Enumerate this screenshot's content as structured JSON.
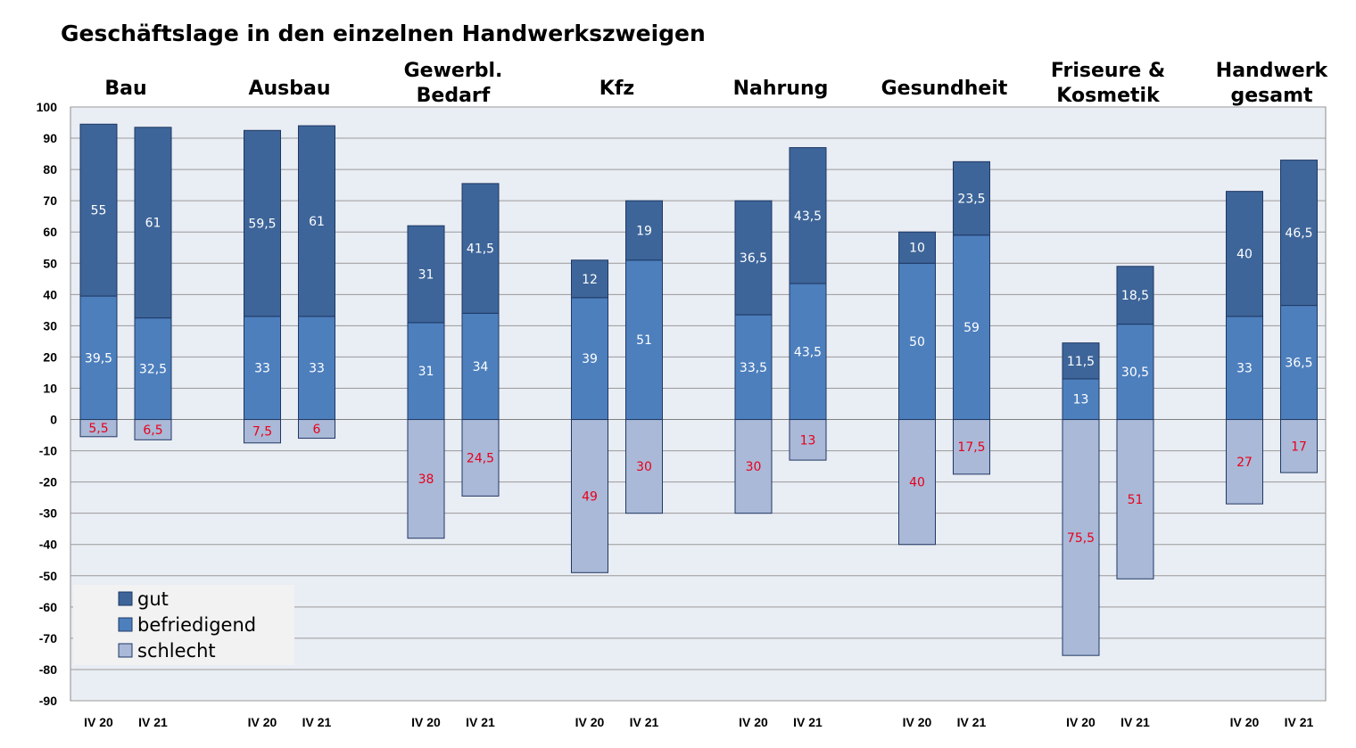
{
  "title": "Geschäftslage in den einzelnen Handwerkszweigen",
  "colors": {
    "plot_bg": "#e9edf4",
    "gut": "#3d6599",
    "befriedigend": "#4d7fbd",
    "schlecht": "#aab9d7",
    "bar_edge": "#1f3864",
    "label_light": "#ffffff",
    "label_red": "#e8001c",
    "legend_bg": "#f2f2f2"
  },
  "chart_data": {
    "type": "bar",
    "stacked": true,
    "ylim": [
      -90,
      100
    ],
    "yticks": [
      100,
      90,
      80,
      70,
      60,
      50,
      40,
      30,
      20,
      10,
      0,
      -10,
      -20,
      -30,
      -40,
      -50,
      -60,
      -70,
      -80,
      -90
    ],
    "grid": true,
    "legend_position": "bottom-left",
    "groups": [
      {
        "label_lines": [
          "Bau"
        ],
        "bars": [
          {
            "x": "IV 20",
            "gut": 55,
            "befriedigend": 39.5,
            "schlecht": 5.5,
            "labels": {
              "gut": "55",
              "befriedigend": "39,5",
              "schlecht": "5,5"
            }
          },
          {
            "x": "IV 21",
            "gut": 61,
            "befriedigend": 32.5,
            "schlecht": 6.5,
            "labels": {
              "gut": "61",
              "befriedigend": "32,5",
              "schlecht": "6,5"
            }
          }
        ]
      },
      {
        "label_lines": [
          "Ausbau"
        ],
        "bars": [
          {
            "x": "IV 20",
            "gut": 59.5,
            "befriedigend": 33,
            "schlecht": 7.5,
            "labels": {
              "gut": "59,5",
              "befriedigend": "33",
              "schlecht": "7,5"
            }
          },
          {
            "x": "IV 21",
            "gut": 61,
            "befriedigend": 33,
            "schlecht": 6,
            "labels": {
              "gut": "61",
              "befriedigend": "33",
              "schlecht": "6"
            }
          }
        ]
      },
      {
        "label_lines": [
          "Gewerbl.",
          "Bedarf"
        ],
        "bars": [
          {
            "x": "IV 20",
            "gut": 31,
            "befriedigend": 31,
            "schlecht": 38,
            "labels": {
              "gut": "31",
              "befriedigend": "31",
              "schlecht": "38"
            }
          },
          {
            "x": "IV 21",
            "gut": 41.5,
            "befriedigend": 34,
            "schlecht": 24.5,
            "labels": {
              "gut": "41,5",
              "befriedigend": "34",
              "schlecht": "24,5"
            }
          }
        ]
      },
      {
        "label_lines": [
          "Kfz"
        ],
        "bars": [
          {
            "x": "IV 20",
            "gut": 12,
            "befriedigend": 39,
            "schlecht": 49,
            "labels": {
              "gut": "12",
              "befriedigend": "39",
              "schlecht": "49"
            }
          },
          {
            "x": "IV 21",
            "gut": 19,
            "befriedigend": 51,
            "schlecht": 30,
            "labels": {
              "gut": "19",
              "befriedigend": "51",
              "schlecht": "30"
            }
          }
        ]
      },
      {
        "label_lines": [
          "Nahrung"
        ],
        "bars": [
          {
            "x": "IV 20",
            "gut": 36.5,
            "befriedigend": 33.5,
            "schlecht": 30,
            "labels": {
              "gut": "36,5",
              "befriedigend": "33,5",
              "schlecht": "30"
            }
          },
          {
            "x": "IV 21",
            "gut": 43.5,
            "befriedigend": 43.5,
            "schlecht": 13,
            "labels": {
              "gut": "43,5",
              "befriedigend": "43,5",
              "schlecht": "13"
            }
          }
        ]
      },
      {
        "label_lines": [
          "Gesundheit"
        ],
        "bars": [
          {
            "x": "IV 20",
            "gut": 10,
            "befriedigend": 50,
            "schlecht": 40,
            "labels": {
              "gut": "10",
              "befriedigend": "50",
              "schlecht": "40"
            }
          },
          {
            "x": "IV 21",
            "gut": 23.5,
            "befriedigend": 59,
            "schlecht": 17.5,
            "labels": {
              "gut": "23,5",
              "befriedigend": "59",
              "schlecht": "17,5"
            }
          }
        ]
      },
      {
        "label_lines": [
          "Friseure &",
          "Kosmetik"
        ],
        "bars": [
          {
            "x": "IV 20",
            "gut": 11.5,
            "befriedigend": 13,
            "schlecht": 75.5,
            "labels": {
              "gut": "11,5",
              "befriedigend": "13",
              "schlecht": "75,5"
            }
          },
          {
            "x": "IV 21",
            "gut": 18.5,
            "befriedigend": 30.5,
            "schlecht": 51,
            "labels": {
              "gut": "18,5",
              "befriedigend": "30,5",
              "schlecht": "51"
            }
          }
        ]
      },
      {
        "label_lines": [
          "Handwerk",
          "gesamt"
        ],
        "bars": [
          {
            "x": "IV 20",
            "gut": 40,
            "befriedigend": 33,
            "schlecht": 27,
            "labels": {
              "gut": "40",
              "befriedigend": "33",
              "schlecht": "27"
            }
          },
          {
            "x": "IV 21",
            "gut": 46.5,
            "befriedigend": 36.5,
            "schlecht": 17,
            "labels": {
              "gut": "46,5",
              "befriedigend": "36,5",
              "schlecht": "17"
            }
          }
        ]
      }
    ],
    "legend": [
      {
        "key": "gut",
        "label": "gut"
      },
      {
        "key": "befriedigend",
        "label": "befriedigend"
      },
      {
        "key": "schlecht",
        "label": "schlecht"
      }
    ]
  }
}
